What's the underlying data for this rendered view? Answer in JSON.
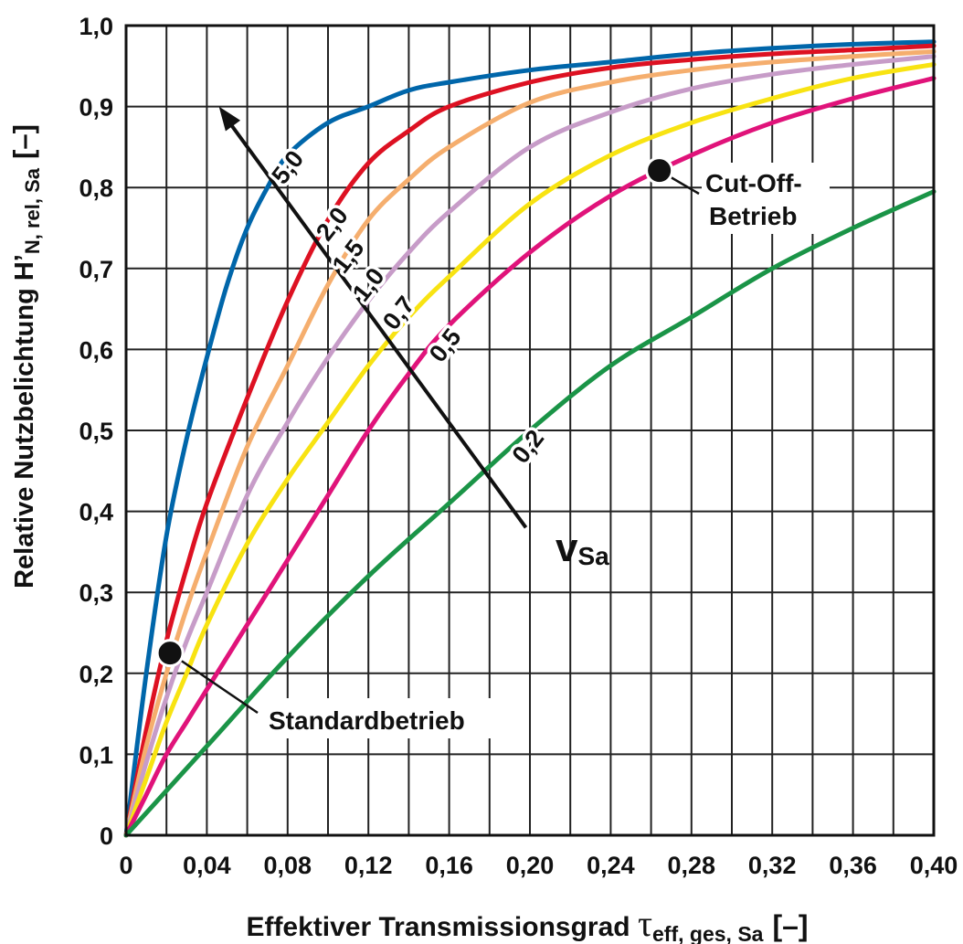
{
  "chart_data": {
    "type": "line",
    "xlabel_main": "Effektiver Transmissionsgrad ",
    "xlabel_symbol": "τ",
    "xlabel_sub": "eff, ges, Sa",
    "xlabel_unit": "[–]",
    "ylabel_main": "Relative Nutzbelichtung H’",
    "ylabel_sub": "N, rel, Sa",
    "ylabel_unit": "[–]",
    "xlim": [
      0,
      0.4
    ],
    "ylim": [
      0,
      1.0
    ],
    "x_ticks": [
      0,
      0.04,
      0.08,
      0.12,
      0.16,
      0.2,
      0.24,
      0.28,
      0.32,
      0.36,
      0.4
    ],
    "x_tick_labels": [
      "0",
      "0,04",
      "0,08",
      "0,12",
      "0,16",
      "0,20",
      "0,24",
      "0,28",
      "0,32",
      "0,36",
      "0,40"
    ],
    "y_ticks": [
      0,
      0.1,
      0.2,
      0.3,
      0.4,
      0.5,
      0.6,
      0.7,
      0.8,
      0.9,
      1.0
    ],
    "y_tick_labels": [
      "0",
      "0,1",
      "0,2",
      "0,3",
      "0,4",
      "0,5",
      "0,6",
      "0,7",
      "0,8",
      "0,9",
      "1,0"
    ],
    "grid": true,
    "series": [
      {
        "label": "5,0",
        "color": "#0066aa",
        "x": [
          0,
          0.01,
          0.02,
          0.03,
          0.04,
          0.05,
          0.06,
          0.07,
          0.08,
          0.1,
          0.12,
          0.14,
          0.16,
          0.2,
          0.24,
          0.28,
          0.32,
          0.36,
          0.4
        ],
        "y": [
          0,
          0.2,
          0.37,
          0.49,
          0.59,
          0.68,
          0.75,
          0.8,
          0.84,
          0.88,
          0.9,
          0.92,
          0.93,
          0.945,
          0.955,
          0.965,
          0.972,
          0.977,
          0.98
        ]
      },
      {
        "label": "2,0",
        "color": "#dd1122",
        "x": [
          0,
          0.01,
          0.02,
          0.03,
          0.04,
          0.06,
          0.08,
          0.1,
          0.12,
          0.14,
          0.16,
          0.2,
          0.24,
          0.28,
          0.32,
          0.36,
          0.4
        ],
        "y": [
          0,
          0.13,
          0.24,
          0.33,
          0.41,
          0.54,
          0.66,
          0.76,
          0.83,
          0.87,
          0.9,
          0.93,
          0.948,
          0.958,
          0.965,
          0.97,
          0.975
        ]
      },
      {
        "label": "1,5",
        "color": "#f5ae6e",
        "x": [
          0,
          0.01,
          0.02,
          0.03,
          0.04,
          0.06,
          0.08,
          0.1,
          0.12,
          0.14,
          0.16,
          0.2,
          0.24,
          0.28,
          0.32,
          0.36,
          0.4
        ],
        "y": [
          0,
          0.11,
          0.2,
          0.28,
          0.35,
          0.48,
          0.58,
          0.68,
          0.76,
          0.81,
          0.85,
          0.905,
          0.93,
          0.945,
          0.955,
          0.962,
          0.968
        ]
      },
      {
        "label": "1,0",
        "color": "#c79cc8",
        "x": [
          0,
          0.01,
          0.02,
          0.03,
          0.04,
          0.06,
          0.08,
          0.1,
          0.12,
          0.14,
          0.16,
          0.2,
          0.24,
          0.28,
          0.32,
          0.36,
          0.4
        ],
        "y": [
          0,
          0.09,
          0.17,
          0.24,
          0.3,
          0.42,
          0.51,
          0.59,
          0.66,
          0.72,
          0.77,
          0.85,
          0.893,
          0.922,
          0.94,
          0.952,
          0.962
        ]
      },
      {
        "label": "0,7",
        "color": "#f8e312",
        "x": [
          0,
          0.01,
          0.02,
          0.03,
          0.04,
          0.06,
          0.08,
          0.1,
          0.12,
          0.14,
          0.16,
          0.2,
          0.24,
          0.28,
          0.32,
          0.36,
          0.4
        ],
        "y": [
          0,
          0.07,
          0.14,
          0.2,
          0.26,
          0.36,
          0.44,
          0.51,
          0.58,
          0.64,
          0.69,
          0.78,
          0.84,
          0.88,
          0.91,
          0.935,
          0.952
        ]
      },
      {
        "label": "0,5",
        "color": "#e0137a",
        "x": [
          0,
          0.01,
          0.02,
          0.03,
          0.04,
          0.06,
          0.08,
          0.1,
          0.12,
          0.14,
          0.16,
          0.2,
          0.24,
          0.28,
          0.32,
          0.36,
          0.4
        ],
        "y": [
          0,
          0.05,
          0.1,
          0.14,
          0.18,
          0.26,
          0.34,
          0.42,
          0.5,
          0.57,
          0.63,
          0.72,
          0.79,
          0.84,
          0.88,
          0.91,
          0.935
        ]
      },
      {
        "label": "0,2",
        "color": "#1a9447",
        "x": [
          0,
          0.04,
          0.08,
          0.12,
          0.16,
          0.2,
          0.24,
          0.28,
          0.32,
          0.36,
          0.4
        ],
        "y": [
          0,
          0.11,
          0.22,
          0.32,
          0.41,
          0.5,
          0.58,
          0.64,
          0.7,
          0.75,
          0.795
        ]
      }
    ],
    "arrow_label": "v",
    "arrow_label_sub": "Sa",
    "annotations": [
      {
        "text": "Standardbetrieb",
        "x": 0.01,
        "y": 0.225
      },
      {
        "text_lines": [
          "Cut-Off-",
          "Betrieb"
        ],
        "x": 0.265,
        "y": 0.83
      }
    ]
  }
}
